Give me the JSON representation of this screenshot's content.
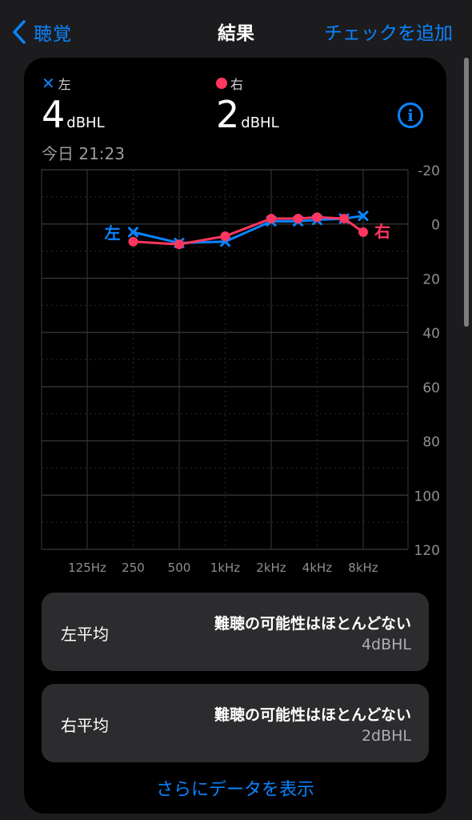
{
  "nav": {
    "back_label": "聴覚",
    "title": "結果",
    "action_label": "チェックを追加"
  },
  "ears": {
    "left": {
      "marker": "✕",
      "label": "左",
      "value": "4",
      "unit": "dBHL",
      "color": "#0a84ff"
    },
    "right": {
      "label": "右",
      "value": "2",
      "unit": "dBHL",
      "color": "#ff375f"
    }
  },
  "timestamp": "今日 21:23",
  "info_icon": "info-icon",
  "chart_data": {
    "type": "line",
    "x_categories": [
      "125Hz",
      "250",
      "500",
      "1kHz",
      "2kHz",
      "4kHz",
      "8kHz"
    ],
    "y_ticks": [
      "-20",
      "0",
      "20",
      "40",
      "60",
      "80",
      "100",
      "120"
    ],
    "ylim": [
      -20,
      120
    ],
    "y_inverted": true,
    "grid": true,
    "series": [
      {
        "name": "左",
        "marker": "x",
        "color": "#0a84ff",
        "points": [
          [
            250,
            3
          ],
          [
            500,
            7
          ],
          [
            1000,
            6.5
          ],
          [
            2000,
            -1
          ],
          [
            3000,
            -1
          ],
          [
            4000,
            -1.5
          ],
          [
            6000,
            -2
          ],
          [
            8000,
            -3
          ]
        ]
      },
      {
        "name": "右",
        "marker": "circle",
        "color": "#ff375f",
        "points": [
          [
            250,
            6.5
          ],
          [
            500,
            7.5
          ],
          [
            1000,
            4.5
          ],
          [
            2000,
            -2
          ],
          [
            3000,
            -2
          ],
          [
            4000,
            -2.5
          ],
          [
            6000,
            -2
          ],
          [
            8000,
            3
          ]
        ]
      }
    ]
  },
  "summaries": [
    {
      "label": "左平均",
      "status": "難聴の可能性はほとんどない",
      "value": "4dBHL"
    },
    {
      "label": "右平均",
      "status": "難聴の可能性はほとんどない",
      "value": "2dBHL"
    }
  ],
  "more_link": "さらにデータを表示"
}
